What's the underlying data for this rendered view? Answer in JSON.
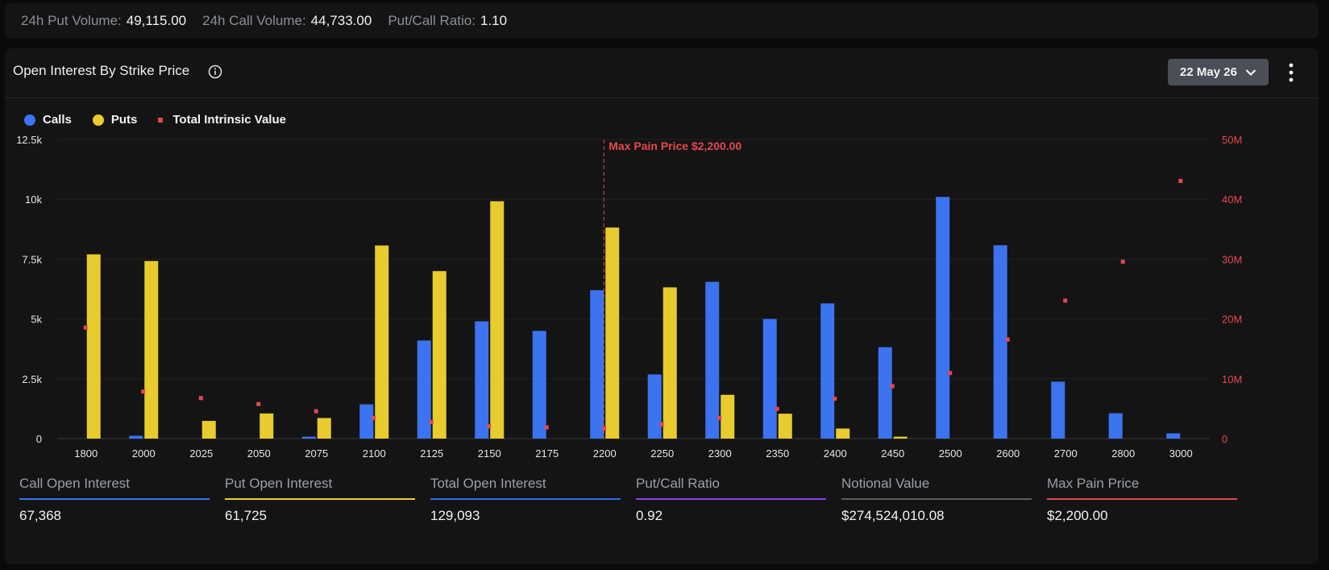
{
  "topbar": {
    "put_volume_label": "24h Put Volume:",
    "put_volume_value": "49,115.00",
    "call_volume_label": "24h Call Volume:",
    "call_volume_value": "44,733.00",
    "ratio_label": "Put/Call Ratio:",
    "ratio_value": "1.10"
  },
  "panel": {
    "title": "Open Interest By Strike Price",
    "date_selector": "22 May 26",
    "icons": {
      "info": "info-icon",
      "dropdown": "chevron-down-icon",
      "menu": "more-vertical-icon"
    }
  },
  "chart_data": {
    "type": "bar",
    "categories": [
      "1800",
      "2000",
      "2025",
      "2050",
      "2075",
      "2100",
      "2125",
      "2150",
      "2175",
      "2200",
      "2250",
      "2300",
      "2350",
      "2400",
      "2450",
      "2500",
      "2600",
      "2700",
      "2800",
      "3000"
    ],
    "series": [
      {
        "name": "Calls",
        "color": "#3b73f0",
        "axis": "left",
        "values": [
          0,
          120,
          0,
          0,
          80,
          1430,
          4100,
          4900,
          4500,
          6200,
          2680,
          6550,
          5000,
          5650,
          3820,
          10100,
          8080,
          2380,
          1060,
          220
        ]
      },
      {
        "name": "Puts",
        "color": "#e8cb2e",
        "axis": "left",
        "values": [
          7700,
          7420,
          740,
          1050,
          860,
          8070,
          7000,
          9920,
          0,
          8820,
          6320,
          1830,
          1040,
          420,
          80,
          0,
          0,
          0,
          0,
          0
        ]
      },
      {
        "name": "Total Intrinsic Value",
        "color": "#e5484d",
        "axis": "right",
        "marker": "square",
        "values": [
          18500000,
          7800000,
          6700000,
          5700000,
          4500000,
          3400000,
          2700000,
          2000000,
          1800000,
          1600000,
          2300000,
          3400000,
          4900000,
          6600000,
          8700000,
          10900000,
          16500000,
          23000000,
          29500000,
          43000000
        ]
      }
    ],
    "y_left": {
      "ticks": [
        "0",
        "2.5k",
        "5k",
        "7.5k",
        "10k",
        "12.5k"
      ],
      "ylim": [
        0,
        12500
      ]
    },
    "y_right": {
      "ticks": [
        "0",
        "10M",
        "20M",
        "30M",
        "40M",
        "50M"
      ],
      "ylim": [
        0,
        50000000
      ]
    },
    "annotation": {
      "label": "Max Pain Price $2,200.00",
      "category": "2200"
    },
    "grid": true,
    "legend": "top-left"
  },
  "stats": [
    {
      "label": "Call Open Interest",
      "value": "67,368",
      "color": "#3b73f0"
    },
    {
      "label": "Put Open Interest",
      "value": "61,725",
      "color": "#e8cb2e"
    },
    {
      "label": "Total Open Interest",
      "value": "129,093",
      "color": "#2f6be8"
    },
    {
      "label": "Put/Call Ratio",
      "value": "0.92",
      "color": "#8e3cf0"
    },
    {
      "label": "Notional Value",
      "value": "$274,524,010.08",
      "color": "#5a5e66"
    },
    {
      "label": "Max Pain Price",
      "value": "$2,200.00",
      "color": "#e5484d"
    }
  ]
}
